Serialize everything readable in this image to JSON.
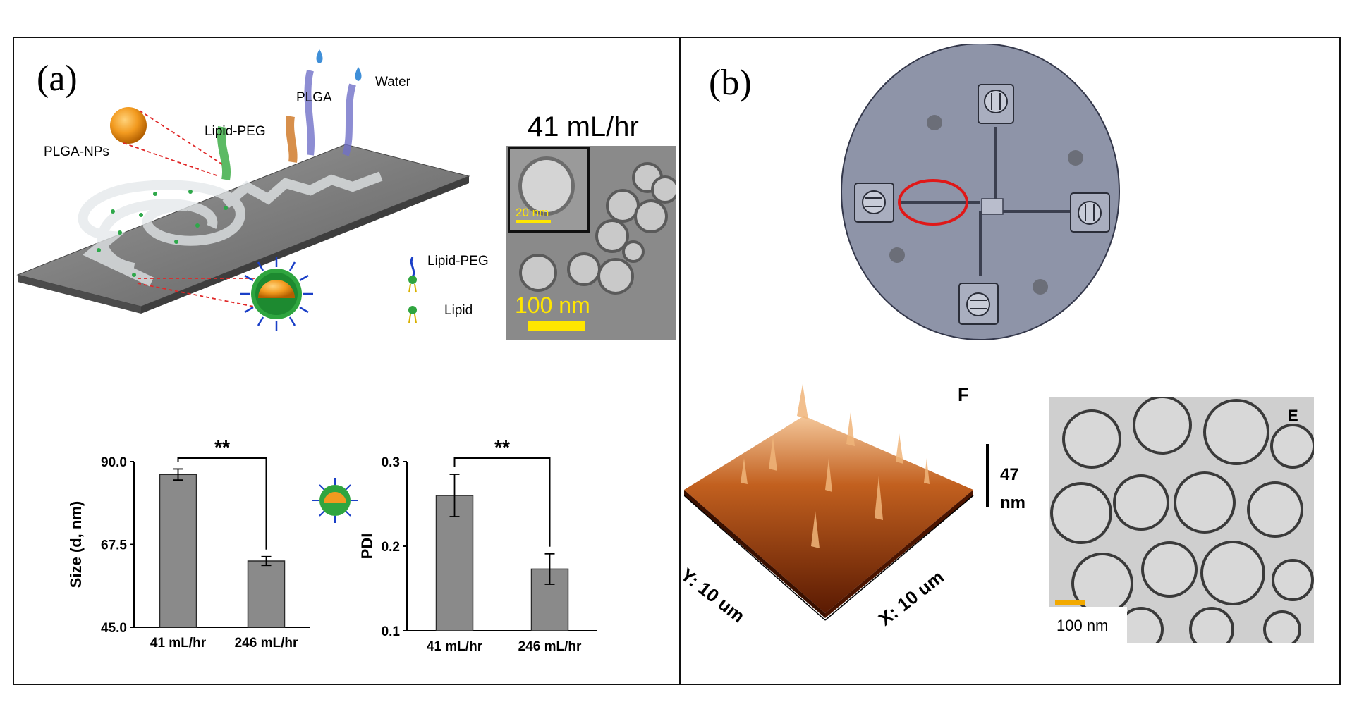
{
  "panel_a": {
    "letter": "(a)",
    "labels": {
      "plga_nps": "PLGA-NPs",
      "lipid_peg_top": "Lipid-PEG",
      "plga": "PLGA",
      "water": "Water",
      "lipid_peg_legend": "Lipid-PEG",
      "lipid_legend": "Lipid"
    },
    "tem": {
      "flow_rate": "41 mL/hr",
      "inset_scale": "20 nm",
      "main_scale": "100 nm"
    }
  },
  "panel_b": {
    "letter": "(b)",
    "afm": {
      "tag": "F",
      "height_label": "47",
      "height_unit": "nm",
      "y_axis": "Y: 10 um",
      "x_axis": "X: 10 um"
    },
    "tem": {
      "tag": "E",
      "scale": "100 nm"
    }
  },
  "chart_data": [
    {
      "type": "bar",
      "categories": [
        "41 mL/hr",
        "246 mL/hr"
      ],
      "values": [
        86.5,
        63.0
      ],
      "errors": [
        1.5,
        1.2
      ],
      "ylabel": "Size (d, nm)",
      "ylim": [
        45.0,
        90.0
      ],
      "yticks": [
        "45.0",
        "67.5",
        "90.0"
      ],
      "significance": "**",
      "colors": {
        "bar": "#8a8a8a",
        "edge": "#2a2a2a"
      }
    },
    {
      "type": "bar",
      "categories": [
        "41 mL/hr",
        "246 mL/hr"
      ],
      "values": [
        0.26,
        0.173
      ],
      "errors": [
        0.025,
        0.018
      ],
      "ylabel": "PDI",
      "ylim": [
        0.1,
        0.3
      ],
      "yticks": [
        "0.1",
        "0.2",
        "0.3"
      ],
      "significance": "**",
      "colors": {
        "bar": "#8a8a8a",
        "edge": "#2a2a2a"
      }
    }
  ]
}
